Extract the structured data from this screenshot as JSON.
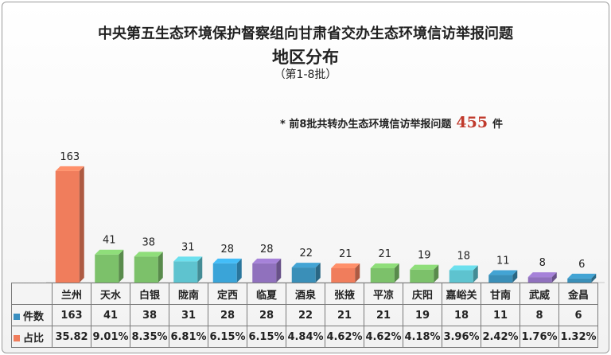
{
  "title": {
    "line1": "中央第五生态环境保护督察组向甘肃省交办生态环境信访举报问题",
    "line2": "地区分布",
    "line3": "（第1-8批）"
  },
  "note": {
    "prefix": "* 前8批共转办生态环境信访举报问题",
    "total": "455",
    "suffix": "件"
  },
  "colors": {
    "count_key": "#3a8fc0",
    "share_key": "#f07d5c"
  },
  "chart_data": {
    "type": "bar",
    "categories": [
      "兰州",
      "天水",
      "白银",
      "陇南",
      "定西",
      "临夏",
      "酒泉",
      "张掖",
      "平凉",
      "庆阳",
      "嘉峪关",
      "甘南",
      "武威",
      "金昌"
    ],
    "values": [
      163,
      41,
      38,
      31,
      28,
      28,
      22,
      21,
      21,
      19,
      18,
      11,
      8,
      6
    ],
    "value_labels": [
      "163",
      "41",
      "38",
      "31",
      "28",
      "28",
      "22",
      "21",
      "21",
      "19",
      "18",
      "11",
      "8",
      "6"
    ],
    "shares": [
      "35.82",
      "9.01%",
      "8.35%",
      "6.81%",
      "6.15%",
      "6.15%",
      "4.84%",
      "4.62%",
      "4.62%",
      "4.18%",
      "3.96%",
      "2.42%",
      "1.76%",
      "1.32%"
    ],
    "bar_colors": [
      "#f07d5c",
      "#7cc16a",
      "#7cc16a",
      "#5ec3cf",
      "#3aa4d8",
      "#9071bd",
      "#3a8fb8",
      "#f07d5c",
      "#7cc16a",
      "#7cc16a",
      "#5ec3cf",
      "#3a8fb8",
      "#9071bd",
      "#3a8fb8"
    ],
    "table_labels": {
      "count": "件数",
      "share": "占比"
    }
  }
}
